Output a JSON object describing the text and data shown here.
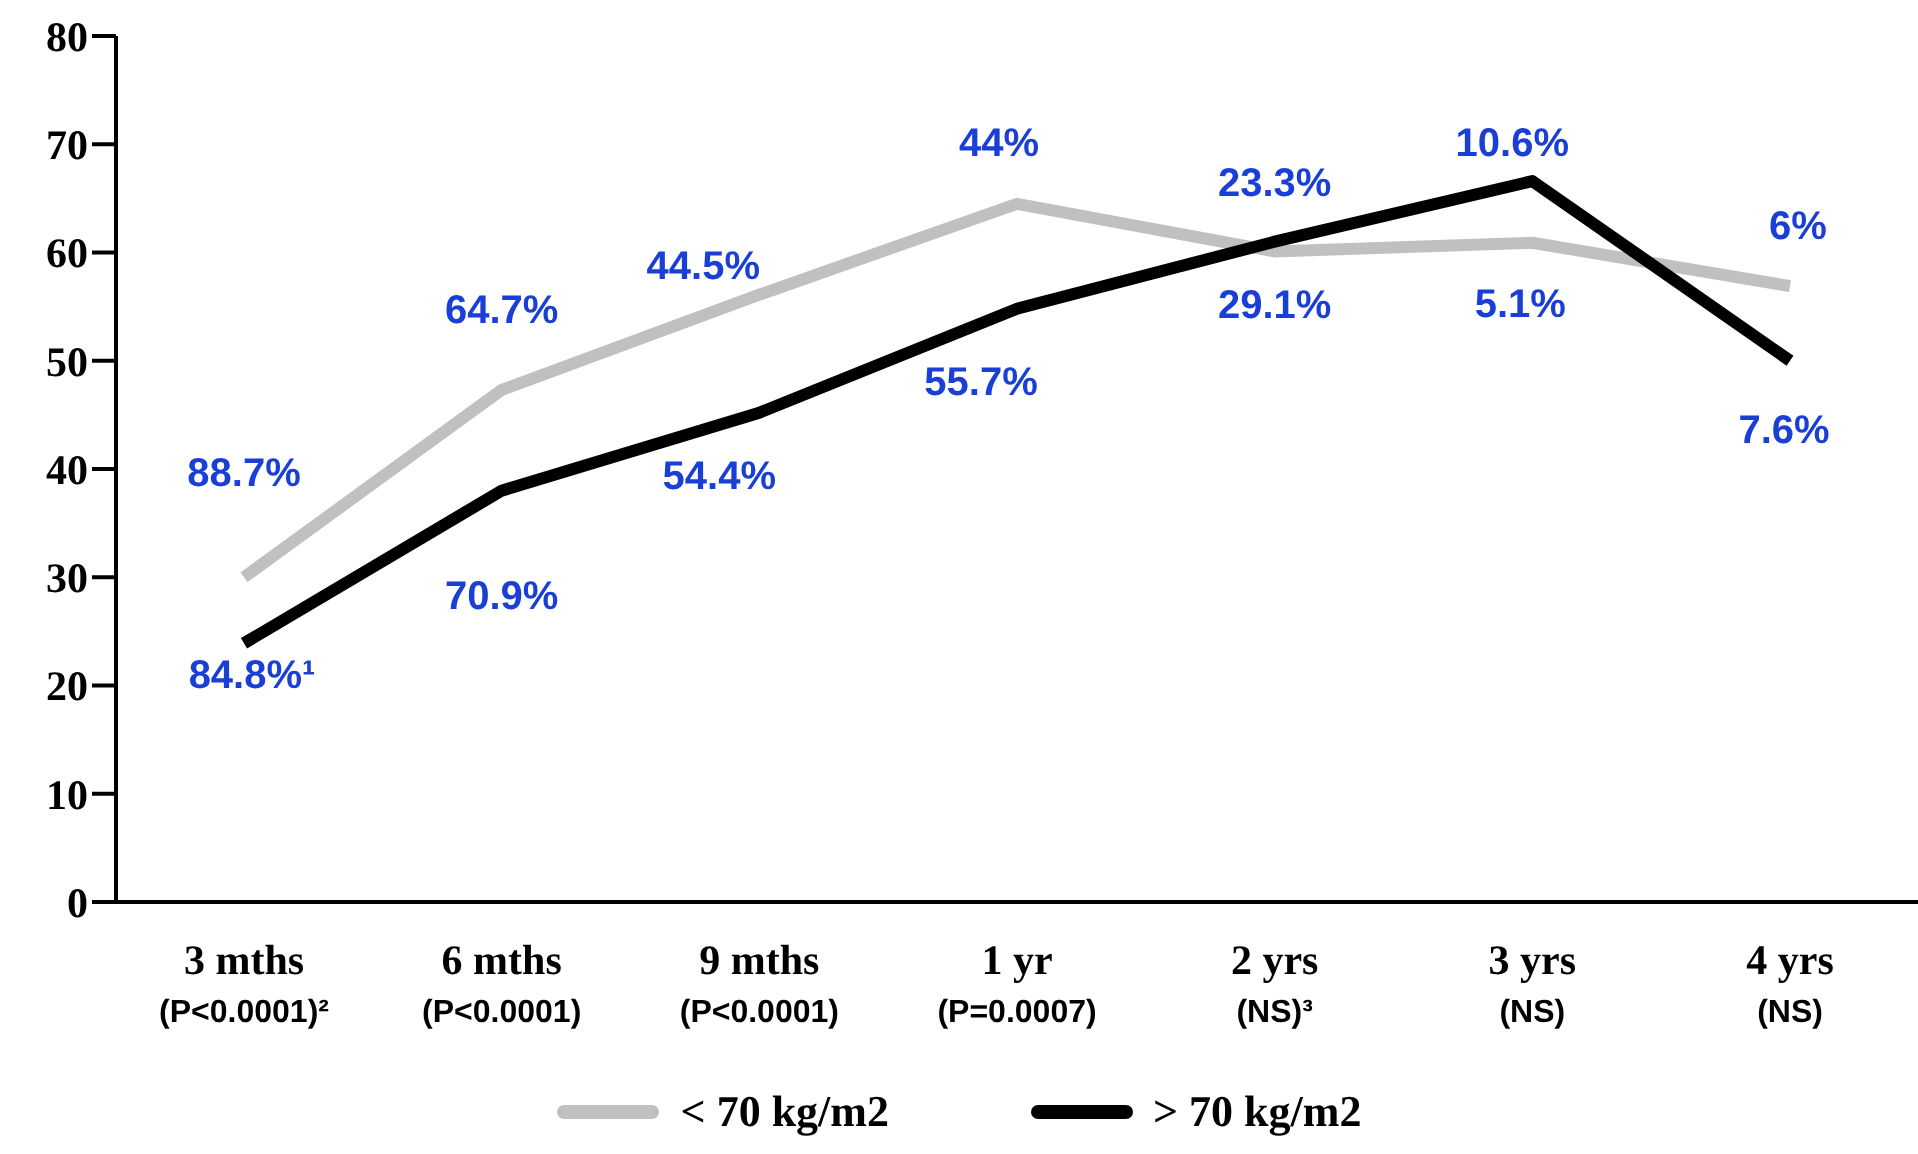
{
  "chart_data": {
    "type": "line",
    "categories": [
      "3 mths\n(P<0.0001)²",
      "6 mths\n(P<0.0001)",
      "9 mths\n(P<0.0001)",
      "1 yr\n(P=0.0007)",
      "2 yrs\n(NS)³",
      "3 yrs\n(NS)",
      "4 yrs\n(NS)"
    ],
    "series": [
      {
        "name": "< 70 kg/m2",
        "color": "#c0c0c0",
        "values": [
          30,
          47.3,
          56.1,
          64.5,
          60.1,
          60.9,
          56.9
        ]
      },
      {
        "name": "> 70 kg/m2",
        "color": "#000000",
        "values": [
          23.9,
          38,
          45.2,
          54.8,
          61,
          66.6,
          50
        ]
      }
    ],
    "ylim": [
      0,
      80
    ],
    "yticks": [
      0,
      10,
      20,
      30,
      40,
      50,
      60,
      70,
      80
    ],
    "grid": false,
    "legend": "bottom",
    "marker": "none",
    "line_style": "solid",
    "annotations": [
      "88.7%",
      "84.8%¹",
      "64.7%",
      "70.9%",
      "44.5%",
      "54.4%",
      "44%",
      "55.7%",
      "23.3%",
      "29.1%",
      "10.6%",
      "5.1%",
      "6%",
      "7.6%"
    ]
  }
}
